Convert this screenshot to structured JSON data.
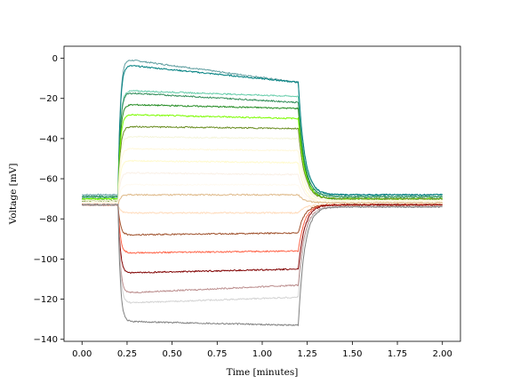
{
  "chart_data": {
    "type": "line",
    "title": "",
    "xlabel": "Time [minutes]",
    "ylabel": "Voltage [mV]",
    "xlim": [
      -0.1,
      2.1
    ],
    "ylim": [
      -141,
      6
    ],
    "x_ticks": [
      0.0,
      0.25,
      0.5,
      0.75,
      1.0,
      1.25,
      1.5,
      1.75,
      2.0
    ],
    "x_tick_labels": [
      "0.00",
      "0.25",
      "0.50",
      "0.75",
      "1.00",
      "1.25",
      "1.50",
      "1.75",
      "2.00"
    ],
    "y_ticks": [
      0,
      -20,
      -40,
      -60,
      -80,
      -100,
      -120,
      -140
    ],
    "y_tick_labels": [
      "0",
      "−20",
      "−40",
      "−60",
      "−80",
      "−100",
      "−120",
      "−140"
    ],
    "grid": false,
    "stimulus_window": [
      0.2,
      1.2
    ],
    "series": [
      {
        "color": "#5f9ea0",
        "baseline": -68,
        "peak": 0,
        "end": -12,
        "recovery": -68
      },
      {
        "color": "#008080",
        "baseline": -69,
        "peak": -3,
        "end": -12,
        "recovery": -68
      },
      {
        "color": "#66cdaa",
        "baseline": -69,
        "peak": -16,
        "end": -19,
        "recovery": -69
      },
      {
        "color": "#2e8b57",
        "baseline": -69,
        "peak": -17,
        "end": -22,
        "recovery": -69
      },
      {
        "color": "#228b22",
        "baseline": -70,
        "peak": -23,
        "end": -25,
        "recovery": -70
      },
      {
        "color": "#7cfc00",
        "baseline": -70,
        "peak": -28,
        "end": -30,
        "recovery": -70
      },
      {
        "color": "#6b8e23",
        "baseline": -71,
        "peak": -34,
        "end": -35,
        "recovery": -70
      },
      {
        "color": "#f5f5dc",
        "baseline": -71,
        "peak": -39,
        "end": -40,
        "recovery": -71
      },
      {
        "color": "#fff8dc",
        "baseline": -72,
        "peak": -45,
        "end": -46,
        "recovery": -71
      },
      {
        "color": "#fffacd",
        "baseline": -72,
        "peak": -51,
        "end": -52,
        "recovery": -72
      },
      {
        "color": "#faf0e6",
        "baseline": -72,
        "peak": -57,
        "end": -58,
        "recovery": -72
      },
      {
        "color": "#fffaf0",
        "baseline": -73,
        "peak": -63,
        "end": -63,
        "recovery": -72
      },
      {
        "color": "#deb887",
        "baseline": -73,
        "peak": -68,
        "end": -68,
        "recovery": -72
      },
      {
        "color": "#ffdab9",
        "baseline": -73,
        "peak": -77,
        "end": -77,
        "recovery": -73
      },
      {
        "color": "#a0522d",
        "baseline": -73,
        "peak": -88,
        "end": -87,
        "recovery": -73
      },
      {
        "color": "#ff6347",
        "baseline": -73,
        "peak": -97,
        "end": -96,
        "recovery": -73
      },
      {
        "color": "#800000",
        "baseline": -73,
        "peak": -107,
        "end": -105,
        "recovery": -73
      },
      {
        "color": "#bc8f8f",
        "baseline": -73,
        "peak": -117,
        "end": -113,
        "recovery": -74
      },
      {
        "color": "#d3d3d3",
        "baseline": -73,
        "peak": -122,
        "end": -119,
        "recovery": -74
      },
      {
        "color": "#808080",
        "baseline": -73,
        "peak": -131,
        "end": -133,
        "recovery": -74
      }
    ]
  }
}
